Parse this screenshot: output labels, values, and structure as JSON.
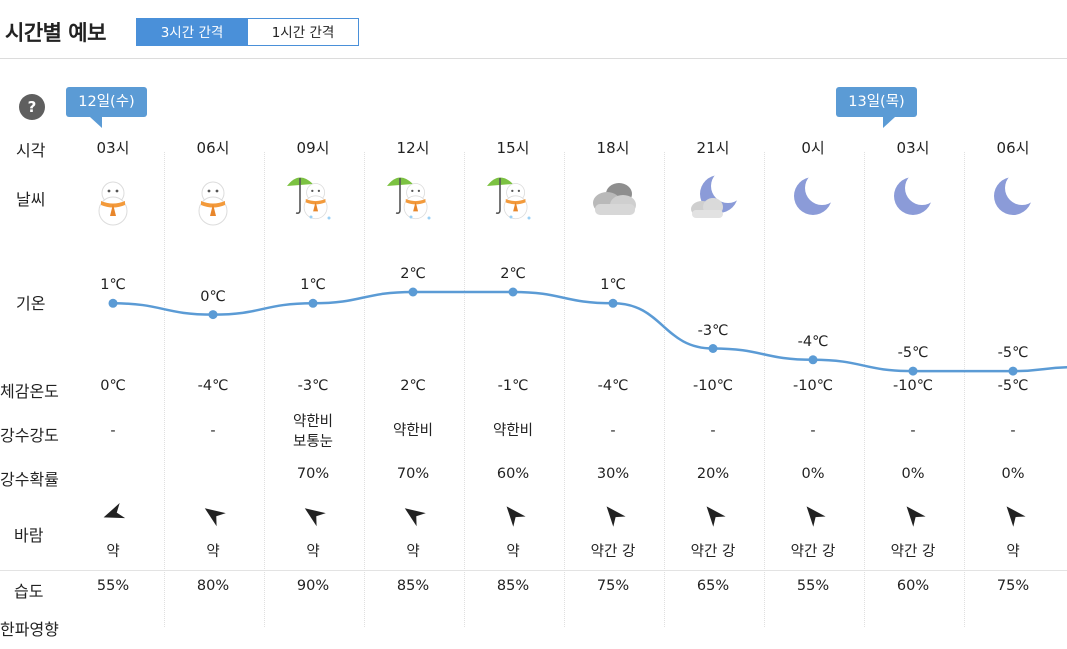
{
  "header": {
    "title": "시간별 예보",
    "tabs": [
      {
        "label": "3시간 간격",
        "active": true
      },
      {
        "label": "1시간 간격",
        "active": false
      }
    ]
  },
  "help_icon": "?",
  "date_flags": [
    "12일(수)",
    "13일(목)"
  ],
  "row_labels": {
    "time": "시각",
    "weather": "날씨",
    "temp": "기온",
    "feels": "체감온도",
    "precip_amount": "강수강도",
    "precip_prob": "강수확률",
    "wind": "바람",
    "humidity": "습도",
    "cold_wave": "한파영향"
  },
  "columns": [
    {
      "hour": "03시",
      "icon": "snowman-icon",
      "temp": "1℃",
      "temp_value": 1,
      "feels": "0℃",
      "precip_lines": [
        "-"
      ],
      "prob": "",
      "wind_dir_deg": 250,
      "wind": "약",
      "humidity": "55%"
    },
    {
      "hour": "06시",
      "icon": "snowman-icon",
      "temp": "0℃",
      "temp_value": 0,
      "feels": "-4℃",
      "precip_lines": [
        "-"
      ],
      "prob": "",
      "wind_dir_deg": 305,
      "wind": "약",
      "humidity": "80%"
    },
    {
      "hour": "09시",
      "icon": "umbrella-snowman-icon",
      "temp": "1℃",
      "temp_value": 1,
      "feels": "-3℃",
      "precip_lines": [
        "약한비",
        "보통눈"
      ],
      "prob": "70%",
      "wind_dir_deg": 305,
      "wind": "약",
      "humidity": "90%"
    },
    {
      "hour": "12시",
      "icon": "umbrella-snowman-icon",
      "temp": "2℃",
      "temp_value": 2,
      "feels": "2℃",
      "precip_lines": [
        "약한비"
      ],
      "prob": "70%",
      "wind_dir_deg": 305,
      "wind": "약",
      "humidity": "85%"
    },
    {
      "hour": "15시",
      "icon": "umbrella-snowman-icon",
      "temp": "2℃",
      "temp_value": 2,
      "feels": "-1℃",
      "precip_lines": [
        "약한비"
      ],
      "prob": "60%",
      "wind_dir_deg": 320,
      "wind": "약",
      "humidity": "85%"
    },
    {
      "hour": "18시",
      "icon": "cloud-icon",
      "temp": "1℃",
      "temp_value": 1,
      "feels": "-4℃",
      "precip_lines": [
        "-"
      ],
      "prob": "30%",
      "wind_dir_deg": 320,
      "wind": "약간 강",
      "humidity": "75%"
    },
    {
      "hour": "21시",
      "icon": "moon-cloud-icon",
      "temp": "-3℃",
      "temp_value": -3,
      "feels": "-10℃",
      "precip_lines": [
        "-"
      ],
      "prob": "20%",
      "wind_dir_deg": 320,
      "wind": "약간 강",
      "humidity": "65%"
    },
    {
      "hour": "0시",
      "icon": "moon-icon",
      "temp": "-4℃",
      "temp_value": -4,
      "feels": "-10℃",
      "precip_lines": [
        "-"
      ],
      "prob": "0%",
      "wind_dir_deg": 320,
      "wind": "약간 강",
      "humidity": "55%"
    },
    {
      "hour": "03시",
      "icon": "moon-icon",
      "temp": "-5℃",
      "temp_value": -5,
      "feels": "-10℃",
      "precip_lines": [
        "-"
      ],
      "prob": "0%",
      "wind_dir_deg": 320,
      "wind": "약간 강",
      "humidity": "60%"
    },
    {
      "hour": "06시",
      "icon": "moon-icon",
      "temp": "-5℃",
      "temp_value": -5,
      "feels": "-5℃",
      "precip_lines": [
        "-"
      ],
      "prob": "0%",
      "wind_dir_deg": 320,
      "wind": "약",
      "humidity": "75%"
    }
  ],
  "colors": {
    "accent": "#4a90d9",
    "flag": "#5b9bd5",
    "temp_line": "#5b9bd5",
    "scarf": "#f39a3b",
    "moon": "#8b9bd8",
    "umbrella": "#7cc242"
  }
}
